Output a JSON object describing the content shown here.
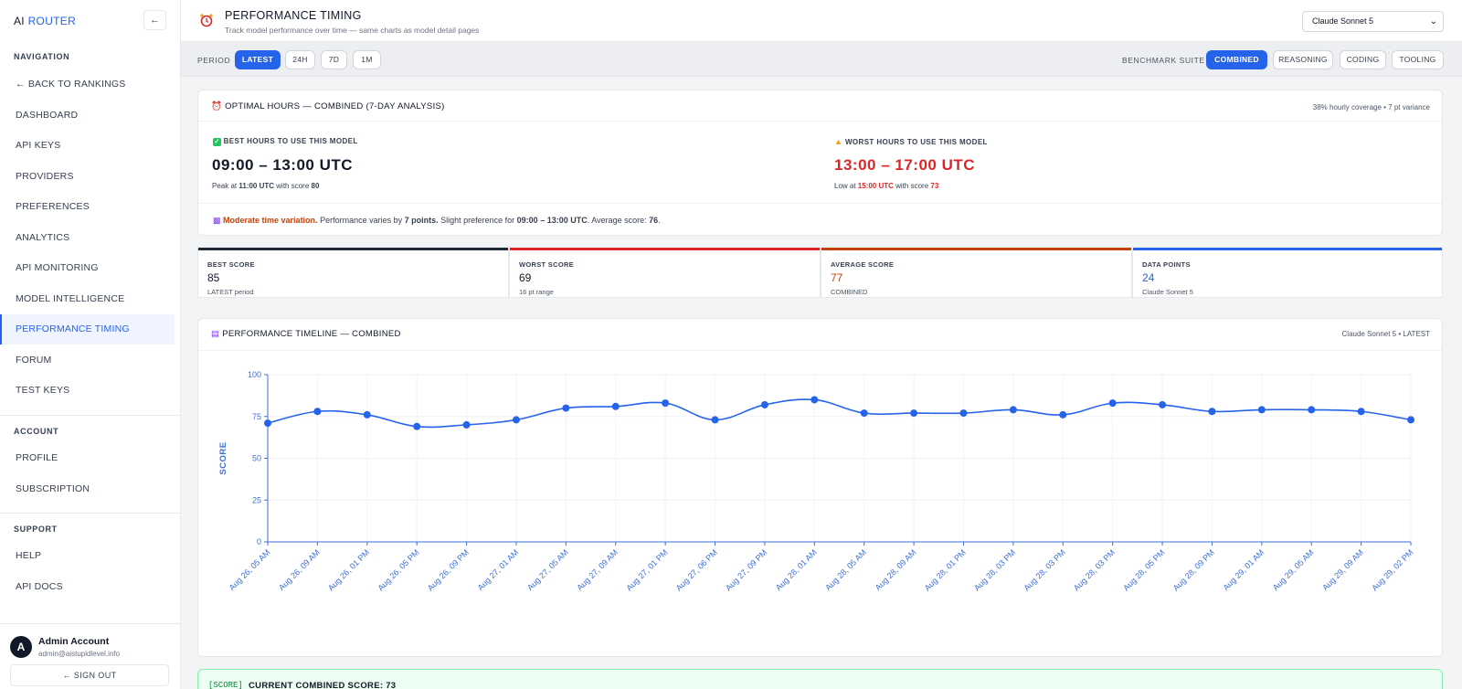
{
  "sidebar": {
    "brand_main": "AI",
    "brand_accent": "ROUTER",
    "collapse_label": "←",
    "navigation_heading": "NAVIGATION",
    "nav_items": [
      {
        "label": "← BACK TO RANKINGS"
      },
      {
        "label": "DASHBOARD"
      },
      {
        "label": "API KEYS"
      },
      {
        "label": "PROVIDERS"
      },
      {
        "label": "PREFERENCES"
      },
      {
        "label": "ANALYTICS"
      },
      {
        "label": "API MONITORING"
      },
      {
        "label": "MODEL INTELLIGENCE"
      },
      {
        "label": "PERFORMANCE TIMING",
        "active": true
      },
      {
        "label": "FORUM"
      },
      {
        "label": "TEST KEYS"
      }
    ],
    "account_heading": "ACCOUNT",
    "account_items": [
      {
        "label": "PROFILE"
      },
      {
        "label": "SUBSCRIPTION"
      }
    ],
    "support_heading": "SUPPORT",
    "support_items": [
      {
        "label": "HELP"
      },
      {
        "label": "API DOCS"
      }
    ],
    "user": {
      "initial": "A",
      "name": "Admin Account",
      "email": "admin@aistupidlevel.info"
    },
    "signout_label": "← SIGN OUT"
  },
  "header": {
    "icon": "alarm-clock-icon",
    "title": "PERFORMANCE TIMING",
    "subtitle": "Track model performance over time — same charts as model detail pages",
    "model_select": "Claude Sonnet 5"
  },
  "toolbar": {
    "period_label": "PERIOD",
    "periods": [
      "LATEST",
      "24H",
      "7D",
      "1M"
    ],
    "active_period": "LATEST",
    "suite_label": "BENCHMARK SUITE",
    "suites": [
      "COMBINED",
      "REASONING",
      "CODING",
      "TOOLING"
    ],
    "active_suite": "COMBINED"
  },
  "optimal": {
    "title": "OPTIMAL HOURS — COMBINED (7-DAY ANALYSIS)",
    "coverage": "38% hourly coverage • 7 pt variance",
    "best_heading": "BEST HOURS TO USE THIS MODEL",
    "best_range": "09:00 – 13:00 UTC",
    "best_detail_pre": "Peak at ",
    "best_detail_time": "11:00 UTC",
    "best_detail_mid": " with score ",
    "best_detail_score": "80",
    "worst_heading": "WORST HOURS TO USE THIS MODEL",
    "worst_range": "13:00 – 17:00 UTC",
    "worst_detail_pre": "Low at ",
    "worst_detail_time": "15:00 UTC",
    "worst_detail_mid": " with score ",
    "worst_detail_score": "73",
    "summary_lead": "Moderate time variation.",
    "summary_1": " Performance varies by ",
    "summary_points": "7 points.",
    "summary_2": " Slight preference for ",
    "summary_range": "09:00 – 13:00 UTC",
    "summary_3": ". Average score: ",
    "summary_avg": "76",
    "summary_4": "."
  },
  "stats": [
    {
      "label": "BEST SCORE",
      "value": "85",
      "sub": "LATEST period",
      "bar_color": "#1f2937",
      "value_color": "#111827"
    },
    {
      "label": "WORST SCORE",
      "value": "69",
      "sub": "16 pt range",
      "bar_color": "#dc2626",
      "value_color": "#111827"
    },
    {
      "label": "AVERAGE SCORE",
      "value": "77",
      "sub": "COMBINED",
      "bar_color": "#c2410c",
      "value_color": "#c2410c"
    },
    {
      "label": "DATA POINTS",
      "value": "24",
      "sub": "Claude Sonnet 5",
      "bar_color": "#2563eb",
      "value_color": "#2563eb"
    }
  ],
  "timeline": {
    "title": "PERFORMANCE TIMELINE — COMBINED",
    "meta": "Claude Sonnet 5 • LATEST"
  },
  "chart_data": {
    "type": "line",
    "title": "PERFORMANCE TIMELINE — COMBINED",
    "xlabel": "",
    "ylabel": "SCORE",
    "ylim": [
      0,
      100
    ],
    "yticks": [
      0,
      25,
      50,
      75,
      100
    ],
    "grid": true,
    "categories": [
      "Aug 26, 05 AM",
      "Aug 26, 09 AM",
      "Aug 26, 01 PM",
      "Aug 26, 05 PM",
      "Aug 26, 09 PM",
      "Aug 27, 01 AM",
      "Aug 27, 05 AM",
      "Aug 27, 09 AM",
      "Aug 27, 01 PM",
      "Aug 27, 06 PM",
      "Aug 27, 09 PM",
      "Aug 28, 01 AM",
      "Aug 28, 05 AM",
      "Aug 28, 09 AM",
      "Aug 28, 01 PM",
      "Aug 28, 03 PM",
      "Aug 28, 03 PM",
      "Aug 28, 03 PM",
      "Aug 28, 05 PM",
      "Aug 28, 09 PM",
      "Aug 29, 01 AM",
      "Aug 29, 05 AM",
      "Aug 29, 09 AM",
      "Aug 29, 02 PM"
    ],
    "series": [
      {
        "values": [
          71,
          78,
          76,
          69,
          70,
          73,
          80,
          81,
          83,
          73,
          82,
          85,
          77,
          77,
          77,
          79,
          76,
          83,
          82,
          78,
          79,
          79,
          78,
          73
        ],
        "color": "#2563eb"
      }
    ]
  },
  "banner": {
    "tag": "[SCORE]",
    "text": "CURRENT COMBINED SCORE: 73"
  }
}
